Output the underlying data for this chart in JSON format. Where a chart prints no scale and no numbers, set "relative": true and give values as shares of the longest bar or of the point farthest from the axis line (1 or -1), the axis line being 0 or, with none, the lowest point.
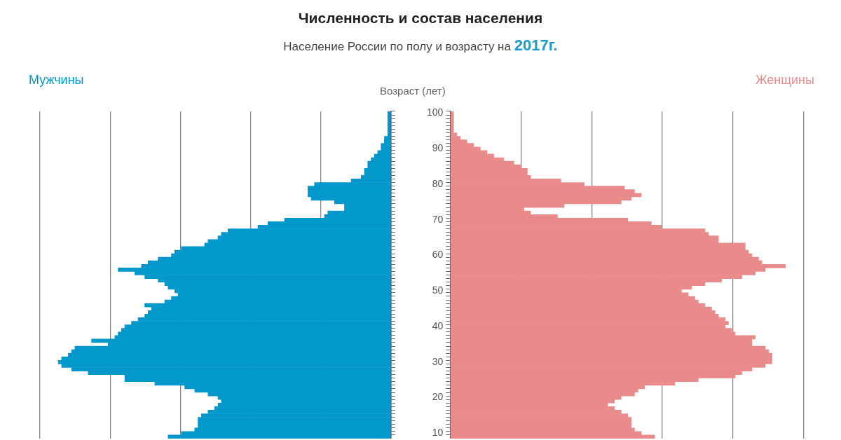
{
  "chart_data": [
    {
      "type": "bar",
      "title": "Численность и состав населения",
      "subtitle": "Население России по полу и возрасту на 2017г.",
      "orientation": "horizontal",
      "relative": true,
      "grid": "x",
      "tick_labels": false,
      "categories": [
        "100",
        null,
        null,
        null,
        null,
        null,
        null,
        null,
        null,
        null,
        "90",
        null,
        null,
        null,
        null,
        null,
        null,
        null,
        null,
        null,
        "80",
        null,
        null,
        null,
        null,
        null,
        null,
        null,
        null,
        null,
        "70",
        null,
        null,
        null,
        null,
        null,
        null,
        null,
        null,
        null,
        "60",
        null,
        null,
        null,
        null,
        null,
        null,
        null,
        null,
        null,
        "50",
        null,
        null,
        null,
        null,
        null,
        null,
        null,
        null,
        null,
        "40",
        null,
        null,
        null,
        null,
        null,
        null,
        null,
        null,
        null,
        "30",
        null,
        null,
        null,
        null,
        null,
        null,
        null,
        null,
        null,
        "20",
        null,
        null,
        null,
        null,
        null,
        null,
        null,
        null,
        null,
        "10",
        null
      ],
      "series": [
        {
          "name": "Мужчины",
          "color": "#0398cc",
          "values": [
            0.01,
            0.01,
            0.01,
            0.01,
            0.01,
            0.01,
            0.01,
            0.02,
            0.02,
            0.03,
            0.03,
            0.04,
            0.05,
            0.06,
            0.07,
            0.07,
            0.08,
            0.08,
            0.09,
            0.12,
            0.23,
            0.25,
            0.25,
            0.25,
            0.24,
            0.17,
            0.14,
            0.14,
            0.19,
            0.2,
            0.32,
            0.37,
            0.4,
            0.49,
            0.51,
            0.52,
            0.55,
            0.56,
            0.63,
            0.65,
            0.66,
            0.7,
            0.73,
            0.75,
            0.82,
            0.77,
            0.74,
            0.7,
            0.68,
            0.67,
            0.65,
            0.64,
            0.66,
            0.68,
            0.74,
            0.72,
            0.73,
            0.74,
            0.76,
            0.78,
            0.8,
            0.81,
            0.82,
            0.83,
            0.9,
            0.85,
            0.95,
            0.96,
            0.97,
            0.99,
            1,
            0.99,
            0.96,
            0.91,
            0.8,
            0.8,
            0.71,
            0.62,
            0.59,
            0.55,
            0.52,
            0.51,
            0.52,
            0.53,
            0.55,
            0.57,
            0.58,
            0.58,
            0.58,
            0.59,
            0.63,
            0.67
          ]
        }
      ]
    },
    {
      "type": "bar",
      "ylabel": "Возраст (лет)",
      "orientation": "horizontal",
      "relative": true,
      "grid": "x",
      "tick_labels": "y",
      "categories": [
        "100",
        null,
        null,
        null,
        null,
        null,
        null,
        null,
        null,
        null,
        "90",
        null,
        null,
        null,
        null,
        null,
        null,
        null,
        null,
        null,
        "80",
        null,
        null,
        null,
        null,
        null,
        null,
        null,
        null,
        null,
        "70",
        null,
        null,
        null,
        null,
        null,
        null,
        null,
        null,
        null,
        "60",
        null,
        null,
        null,
        null,
        null,
        null,
        null,
        null,
        null,
        "50",
        null,
        null,
        null,
        null,
        null,
        null,
        null,
        null,
        null,
        "40",
        null,
        null,
        null,
        null,
        null,
        null,
        null,
        null,
        null,
        "30",
        null,
        null,
        null,
        null,
        null,
        null,
        null,
        null,
        null,
        "20",
        null,
        null,
        null,
        null,
        null,
        null,
        null,
        null,
        null,
        "10",
        null
      ],
      "series": [
        {
          "name": "Женщины",
          "color": "#e98b8b",
          "values": [
            0.01,
            0.01,
            0.01,
            0.01,
            0.01,
            0.01,
            0.02,
            0.03,
            0.05,
            0.07,
            0.09,
            0.11,
            0.13,
            0.16,
            0.19,
            0.21,
            0.23,
            0.23,
            0.24,
            0.33,
            0.4,
            0.52,
            0.55,
            0.57,
            0.54,
            0.51,
            0.34,
            0.22,
            0.24,
            0.32,
            0.53,
            0.6,
            0.63,
            0.76,
            0.77,
            0.8,
            0.8,
            0.88,
            0.88,
            0.89,
            0.9,
            0.92,
            0.93,
            1,
            0.94,
            0.91,
            0.87,
            0.81,
            0.76,
            0.72,
            0.69,
            0.71,
            0.73,
            0.74,
            0.76,
            0.78,
            0.79,
            0.8,
            0.82,
            0.83,
            0.82,
            0.84,
            0.85,
            0.91,
            0.9,
            0.9,
            0.94,
            0.95,
            0.96,
            0.96,
            0.96,
            0.94,
            0.9,
            0.87,
            0.85,
            0.74,
            0.67,
            0.58,
            0.56,
            0.55,
            0.51,
            0.49,
            0.47,
            0.49,
            0.51,
            0.53,
            0.54,
            0.54,
            0.54,
            0.55,
            0.57,
            0.61
          ]
        }
      ]
    }
  ]
}
